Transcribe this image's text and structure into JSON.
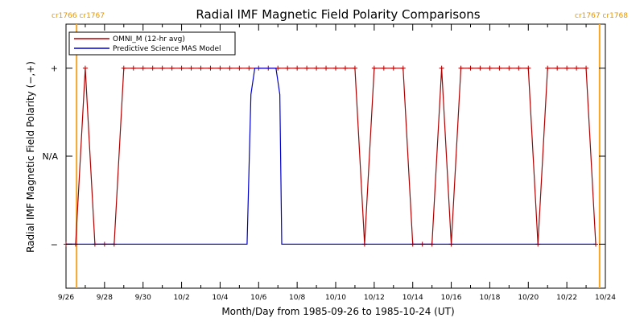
{
  "colors": {
    "omni": "#b00000",
    "mas": "#0000cc",
    "carrington": "#f5a623",
    "axis": "#000000",
    "background": "#ffffff"
  },
  "chart_data": {
    "type": "line",
    "title": "Radial IMF Magnetic Field Polarity Comparisons",
    "xlabel": "Month/Day from 1985-09-26 to 1985-10-24 (UT)",
    "ylabel": "Radial IMF Magnetic Field Polarity (−,+)",
    "x_unit": "days from 1985-09-26 00:00 UT",
    "xlim": [
      0,
      28
    ],
    "ylim": [
      -1.5,
      1.5
    ],
    "y_ticks": [
      {
        "value": -1,
        "label": "−"
      },
      {
        "value": 0,
        "label": "N/A"
      },
      {
        "value": 1,
        "label": "+"
      }
    ],
    "x_ticks": [
      {
        "value": 0,
        "label": "9/26"
      },
      {
        "value": 2,
        "label": "9/28"
      },
      {
        "value": 4,
        "label": "9/30"
      },
      {
        "value": 6,
        "label": "10/2"
      },
      {
        "value": 8,
        "label": "10/4"
      },
      {
        "value": 10,
        "label": "10/6"
      },
      {
        "value": 12,
        "label": "10/8"
      },
      {
        "value": 14,
        "label": "10/10"
      },
      {
        "value": 16,
        "label": "10/12"
      },
      {
        "value": 18,
        "label": "10/14"
      },
      {
        "value": 20,
        "label": "10/16"
      },
      {
        "value": 22,
        "label": "10/18"
      },
      {
        "value": 24,
        "label": "10/20"
      },
      {
        "value": 26,
        "label": "10/22"
      },
      {
        "value": 28,
        "label": "10/24"
      }
    ],
    "carrington": [
      {
        "x": 0.55,
        "left": "cr1766",
        "right": "cr1767",
        "side": "left"
      },
      {
        "x": 27.7,
        "left": "cr1767",
        "right": "cr1768",
        "side": "right"
      }
    ],
    "legend": {
      "placement": "top-left"
    },
    "series": [
      {
        "name": "OMNI_M (12-hr avg)",
        "marker": "+",
        "points": [
          [
            0,
            -1
          ],
          [
            0.5,
            -1
          ],
          [
            1,
            1
          ],
          [
            1.5,
            -1
          ],
          [
            2,
            -1
          ],
          [
            2.5,
            -1
          ],
          [
            3,
            1
          ],
          [
            3.5,
            1
          ],
          [
            4,
            1
          ],
          [
            4.5,
            1
          ],
          [
            5,
            1
          ],
          [
            5.5,
            1
          ],
          [
            6,
            1
          ],
          [
            6.5,
            1
          ],
          [
            7,
            1
          ],
          [
            7.5,
            1
          ],
          [
            8,
            1
          ],
          [
            8.5,
            1
          ],
          [
            9,
            1
          ],
          [
            9.5,
            1
          ],
          [
            10,
            1
          ],
          [
            10.5,
            1
          ],
          [
            11,
            1
          ],
          [
            11.5,
            1
          ],
          [
            12,
            1
          ],
          [
            12.5,
            1
          ],
          [
            13,
            1
          ],
          [
            13.5,
            1
          ],
          [
            14,
            1
          ],
          [
            14.5,
            1
          ],
          [
            15,
            1
          ],
          [
            15.5,
            -1
          ],
          [
            16,
            1
          ],
          [
            16.5,
            1
          ],
          [
            17,
            1
          ],
          [
            17.5,
            1
          ],
          [
            18,
            -1
          ],
          [
            18.5,
            -1
          ],
          [
            19,
            -1
          ],
          [
            19.5,
            1
          ],
          [
            20,
            -1
          ],
          [
            20.5,
            1
          ],
          [
            21,
            1
          ],
          [
            21.5,
            1
          ],
          [
            22,
            1
          ],
          [
            22.5,
            1
          ],
          [
            23,
            1
          ],
          [
            23.5,
            1
          ],
          [
            24,
            1
          ],
          [
            24.5,
            -1
          ],
          [
            25,
            1
          ],
          [
            25.5,
            1
          ],
          [
            26,
            1
          ],
          [
            26.5,
            1
          ],
          [
            27,
            1
          ],
          [
            27.5,
            -1
          ]
        ]
      },
      {
        "name": "Predictive Science MAS Model",
        "points": [
          [
            0,
            -1
          ],
          [
            9.4,
            -1
          ],
          [
            9.6,
            0.7
          ],
          [
            9.8,
            1
          ],
          [
            10.9,
            1
          ],
          [
            11.1,
            0.7
          ],
          [
            11.2,
            -1
          ],
          [
            27.5,
            -1
          ]
        ]
      }
    ]
  }
}
